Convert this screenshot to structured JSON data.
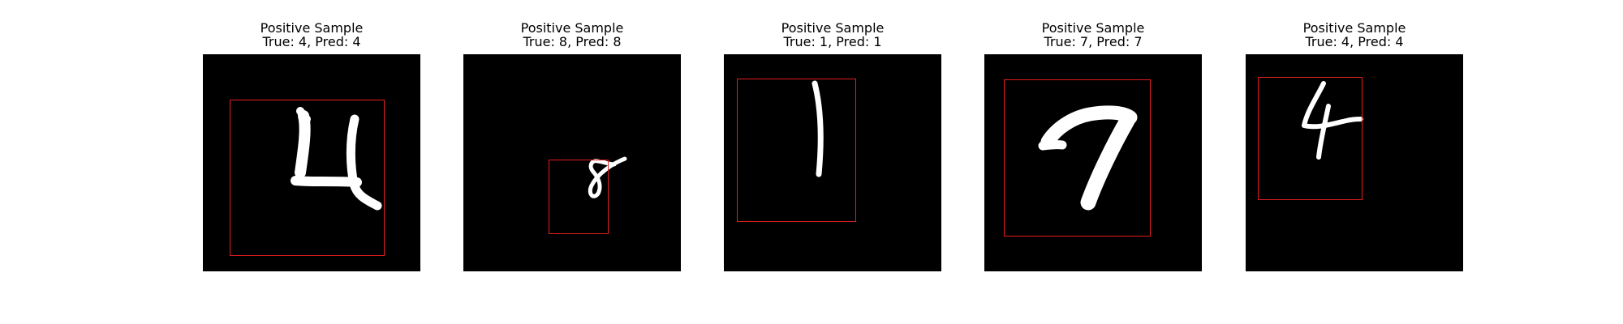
{
  "colors": {
    "box": "#e01e1e",
    "image_background": "#000000",
    "stroke": "#ffffff"
  },
  "panels": [
    {
      "title": "Positive Sample",
      "subtitle": "True: 4, Pred: 4",
      "digit": "4"
    },
    {
      "title": "Positive Sample",
      "subtitle": "True: 8, Pred: 8",
      "digit": "8"
    },
    {
      "title": "Positive Sample",
      "subtitle": "True: 1, Pred: 1",
      "digit": "1"
    },
    {
      "title": "Positive Sample",
      "subtitle": "True: 7, Pred: 7",
      "digit": "7"
    },
    {
      "title": "Positive Sample",
      "subtitle": "True: 4, Pred: 4",
      "digit": "4"
    }
  ]
}
